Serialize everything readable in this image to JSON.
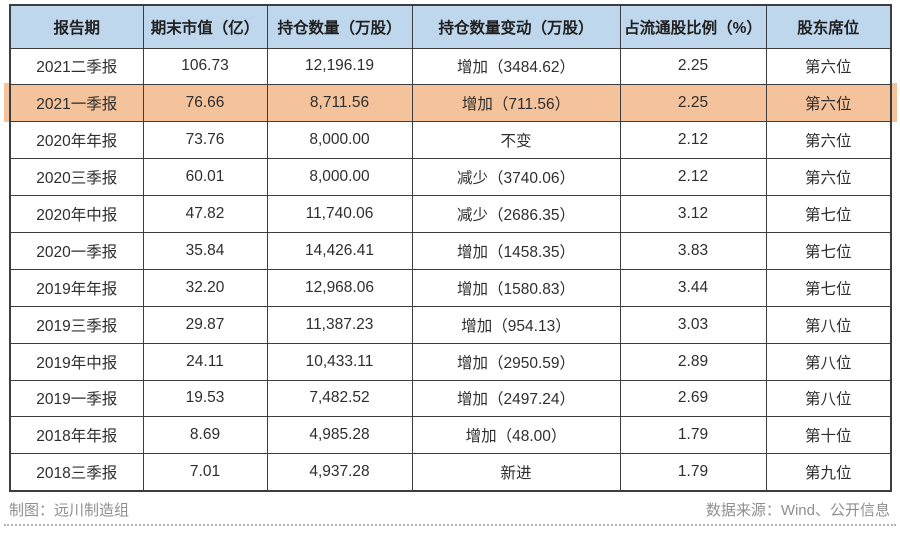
{
  "chart_data": {
    "type": "table",
    "columns": [
      "报告期",
      "期末市值（亿）",
      "持仓数量（万股）",
      "持仓数量变动（万股）",
      "占流通股比例（%）",
      "股东席位"
    ],
    "rows": [
      {
        "period": "2021二季报",
        "market_value": "106.73",
        "holdings": "12,196.19",
        "change": "增加（3484.62）",
        "ratio": "2.25",
        "seat": "第六位",
        "highlighted": false
      },
      {
        "period": "2021一季报",
        "market_value": "76.66",
        "holdings": "8,711.56",
        "change": "增加（711.56）",
        "ratio": "2.25",
        "seat": "第六位",
        "highlighted": true
      },
      {
        "period": "2020年年报",
        "market_value": "73.76",
        "holdings": "8,000.00",
        "change": "不变",
        "ratio": "2.12",
        "seat": "第六位",
        "highlighted": false
      },
      {
        "period": "2020三季报",
        "market_value": "60.01",
        "holdings": "8,000.00",
        "change": "减少（3740.06）",
        "ratio": "2.12",
        "seat": "第六位",
        "highlighted": false
      },
      {
        "period": "2020年中报",
        "market_value": "47.82",
        "holdings": "11,740.06",
        "change": "减少（2686.35）",
        "ratio": "3.12",
        "seat": "第七位",
        "highlighted": false
      },
      {
        "period": "2020一季报",
        "market_value": "35.84",
        "holdings": "14,426.41",
        "change": "增加（1458.35）",
        "ratio": "3.83",
        "seat": "第七位",
        "highlighted": false
      },
      {
        "period": "2019年年报",
        "market_value": "32.20",
        "holdings": "12,968.06",
        "change": "增加（1580.83）",
        "ratio": "3.44",
        "seat": "第七位",
        "highlighted": false
      },
      {
        "period": "2019三季报",
        "market_value": "29.87",
        "holdings": "11,387.23",
        "change": "增加（954.13）",
        "ratio": "3.03",
        "seat": "第八位",
        "highlighted": false
      },
      {
        "period": "2019年中报",
        "market_value": "24.11",
        "holdings": "10,433.11",
        "change": "增加（2950.59）",
        "ratio": "2.89",
        "seat": "第八位",
        "highlighted": false
      },
      {
        "period": "2019一季报",
        "market_value": "19.53",
        "holdings": "7,482.52",
        "change": "增加（2497.24）",
        "ratio": "2.69",
        "seat": "第八位",
        "highlighted": false
      },
      {
        "period": "2018年年报",
        "market_value": "8.69",
        "holdings": "4,985.28",
        "change": "增加（48.00）",
        "ratio": "1.79",
        "seat": "第十位",
        "highlighted": false
      },
      {
        "period": "2018三季报",
        "market_value": "7.01",
        "holdings": "4,937.28",
        "change": "新进",
        "ratio": "1.79",
        "seat": "第九位",
        "highlighted": false
      }
    ],
    "highlighted_row_index": 1,
    "title": "",
    "legend_position": "none"
  },
  "footer": {
    "left": "制图：远川制造组",
    "right": "数据来源：Wind、公开信息"
  },
  "colors": {
    "header_bg": "#bed7ed",
    "highlight_bg": "#f4c29b",
    "border": "#3d3d3d",
    "text": "#2e2e2e",
    "footer_text": "#8f8f8f"
  }
}
